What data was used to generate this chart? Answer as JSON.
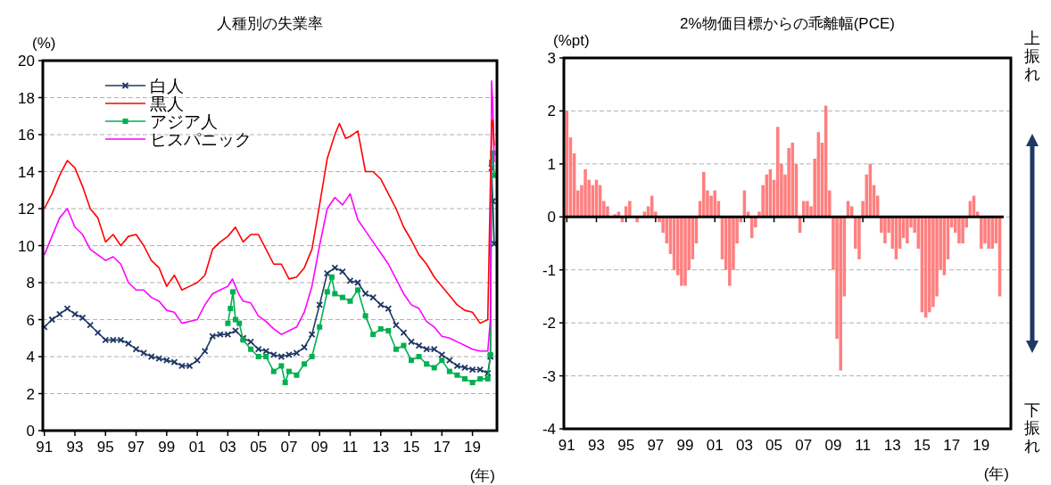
{
  "chart_data": [
    {
      "type": "line",
      "title": "人種別の失業率",
      "ylabel": "(%)",
      "xlabel": "(年)",
      "xlim": [
        1990.9,
        2020.6
      ],
      "ylim": [
        0,
        20
      ],
      "yticks": [
        0,
        2,
        4,
        6,
        8,
        10,
        12,
        14,
        16,
        18,
        20
      ],
      "xticks": [
        {
          "value": 1991,
          "label": "91"
        },
        {
          "value": 1993,
          "label": "93"
        },
        {
          "value": 1995,
          "label": "95"
        },
        {
          "value": 1997,
          "label": "97"
        },
        {
          "value": 1999,
          "label": "99"
        },
        {
          "value": 2001,
          "label": "01"
        },
        {
          "value": 2003,
          "label": "03"
        },
        {
          "value": 2005,
          "label": "05"
        },
        {
          "value": 2007,
          "label": "07"
        },
        {
          "value": 2009,
          "label": "09"
        },
        {
          "value": 2011,
          "label": "11"
        },
        {
          "value": 2013,
          "label": "13"
        },
        {
          "value": 2015,
          "label": "15"
        },
        {
          "value": 2017,
          "label": "17"
        },
        {
          "value": 2019,
          "label": "19"
        }
      ],
      "grid": "y",
      "legend": "top left",
      "line_style": "solid",
      "series": [
        {
          "name": "白人",
          "color": "#1f3864",
          "marker": "cross",
          "x": [
            1991,
            1991.5,
            1992,
            1992.5,
            1993,
            1993.5,
            1994,
            1994.5,
            1995,
            1995.5,
            1996,
            1996.5,
            1997,
            1997.5,
            1998,
            1998.5,
            1999,
            1999.5,
            2000,
            2000.5,
            2001,
            2001.5,
            2002,
            2002.5,
            2003,
            2003.5,
            2004,
            2004.5,
            2005,
            2005.5,
            2006,
            2006.5,
            2007,
            2007.5,
            2008,
            2008.5,
            2009,
            2009.5,
            2010,
            2010.5,
            2011,
            2011.5,
            2012,
            2012.5,
            2013,
            2013.5,
            2014,
            2014.5,
            2015,
            2015.5,
            2016,
            2016.5,
            2017,
            2017.5,
            2018,
            2018.5,
            2019,
            2019.5,
            2020,
            2020.17,
            2020.25,
            2020.33,
            2020.42
          ],
          "values": [
            5.6,
            6.0,
            6.3,
            6.6,
            6.3,
            6.1,
            5.7,
            5.3,
            4.9,
            4.9,
            4.9,
            4.7,
            4.4,
            4.2,
            4.0,
            3.9,
            3.8,
            3.7,
            3.5,
            3.5,
            3.8,
            4.3,
            5.1,
            5.2,
            5.2,
            5.4,
            5.0,
            4.8,
            4.4,
            4.3,
            4.1,
            4.0,
            4.1,
            4.2,
            4.5,
            5.2,
            6.8,
            8.5,
            8.8,
            8.6,
            8.1,
            8.0,
            7.4,
            7.2,
            6.8,
            6.6,
            5.7,
            5.3,
            4.8,
            4.6,
            4.4,
            4.4,
            4.1,
            3.8,
            3.5,
            3.4,
            3.3,
            3.3,
            3.1,
            4.0,
            14.2,
            12.4,
            10.1
          ]
        },
        {
          "name": "黒人",
          "color": "#ff0000",
          "marker": "none",
          "x": [
            1991,
            1991.5,
            1992,
            1992.5,
            1993,
            1993.5,
            1994,
            1994.5,
            1995,
            1995.5,
            1996,
            1996.5,
            1997,
            1997.5,
            1998,
            1998.5,
            1999,
            1999.5,
            2000,
            2000.5,
            2001,
            2001.5,
            2002,
            2002.5,
            2003,
            2003.5,
            2004,
            2004.5,
            2005,
            2005.5,
            2006,
            2006.5,
            2007,
            2007.5,
            2008,
            2008.5,
            2009,
            2009.5,
            2010,
            2010.3,
            2010.7,
            2011,
            2011.5,
            2012,
            2012.5,
            2013,
            2013.5,
            2014,
            2014.5,
            2015,
            2015.5,
            2016,
            2016.5,
            2017,
            2017.5,
            2018,
            2018.5,
            2019,
            2019.5,
            2020,
            2020.25,
            2020.33,
            2020.42
          ],
          "values": [
            12.0,
            12.8,
            13.8,
            14.6,
            14.2,
            13.2,
            12.0,
            11.5,
            10.2,
            10.6,
            10.0,
            10.5,
            10.6,
            10.0,
            9.2,
            8.8,
            7.8,
            8.4,
            7.6,
            7.8,
            8.0,
            8.4,
            9.8,
            10.2,
            10.5,
            11.0,
            10.2,
            10.6,
            10.6,
            9.8,
            9.0,
            9.0,
            8.2,
            8.3,
            8.8,
            9.8,
            12.2,
            14.7,
            16.0,
            16.6,
            15.8,
            15.9,
            16.2,
            14.0,
            14.0,
            13.6,
            12.8,
            12.0,
            11.0,
            10.3,
            9.5,
            9.0,
            8.3,
            7.8,
            7.3,
            6.8,
            6.5,
            6.4,
            5.8,
            6.0,
            16.7,
            16.8,
            15.4
          ]
        },
        {
          "name": "アジア人",
          "color": "#00b050",
          "marker": "square",
          "x": [
            2003,
            2003.17,
            2003.33,
            2003.5,
            2003.75,
            2004,
            2004.5,
            2005,
            2005.5,
            2006,
            2006.5,
            2006.75,
            2007,
            2007.5,
            2008,
            2008.5,
            2009,
            2009.5,
            2009.8,
            2010,
            2010.5,
            2011,
            2011.5,
            2012,
            2012.5,
            2013,
            2013.5,
            2014,
            2014.5,
            2015,
            2015.5,
            2016,
            2016.5,
            2017,
            2017.5,
            2018,
            2018.5,
            2019,
            2019.5,
            2020,
            2020.17,
            2020.25,
            2020.33,
            2020.42
          ],
          "values": [
            5.8,
            6.6,
            7.5,
            6.0,
            5.8,
            4.9,
            4.4,
            4.0,
            4.0,
            3.2,
            3.5,
            2.6,
            3.2,
            3.0,
            3.6,
            4.0,
            5.6,
            7.5,
            8.3,
            7.4,
            7.2,
            7.0,
            7.6,
            6.2,
            5.2,
            5.5,
            5.4,
            4.4,
            4.6,
            3.8,
            4.0,
            3.6,
            3.4,
            3.8,
            3.2,
            3.0,
            2.8,
            2.6,
            2.8,
            2.8,
            4.1,
            14.5,
            15.0,
            13.8
          ]
        },
        {
          "name": "ヒスパニック",
          "color": "#ff00ff",
          "marker": "none",
          "x": [
            1991,
            1991.5,
            1992,
            1992.5,
            1993,
            1993.5,
            1994,
            1994.5,
            1995,
            1995.5,
            1996,
            1996.5,
            1997,
            1997.5,
            1998,
            1998.5,
            1999,
            1999.5,
            2000,
            2000.5,
            2001,
            2001.5,
            2002,
            2002.5,
            2003,
            2003.3,
            2003.7,
            2004,
            2004.5,
            2005,
            2005.5,
            2006,
            2006.5,
            2007,
            2007.5,
            2008,
            2008.5,
            2009,
            2009.5,
            2010,
            2010.5,
            2011,
            2011.5,
            2012,
            2012.5,
            2013,
            2013.5,
            2014,
            2014.5,
            2015,
            2015.5,
            2016,
            2016.5,
            2017,
            2017.5,
            2018,
            2018.5,
            2019,
            2019.5,
            2020,
            2020.17,
            2020.25,
            2020.33,
            2020.42
          ],
          "values": [
            9.5,
            10.5,
            11.5,
            12.0,
            11.0,
            10.6,
            9.8,
            9.5,
            9.2,
            9.4,
            9.0,
            8.0,
            7.6,
            7.6,
            7.2,
            7.0,
            6.5,
            6.4,
            5.8,
            5.9,
            6.0,
            6.8,
            7.4,
            7.6,
            7.8,
            8.2,
            7.4,
            7.0,
            6.9,
            6.2,
            5.9,
            5.5,
            5.2,
            5.4,
            5.6,
            6.4,
            7.8,
            10.0,
            12.0,
            12.6,
            12.2,
            12.8,
            11.4,
            10.8,
            10.2,
            9.6,
            9.0,
            8.2,
            7.4,
            6.8,
            6.6,
            5.9,
            5.6,
            5.1,
            5.0,
            4.8,
            4.6,
            4.4,
            4.3,
            4.3,
            6.0,
            18.9,
            17.6,
            14.5
          ]
        }
      ]
    },
    {
      "type": "bar",
      "title": "2%物価目標からの乖離幅(PCE)",
      "ylabel": "(%pt)",
      "xlabel": "(年)",
      "xlim": [
        1990.8,
        2021
      ],
      "ylim": [
        -4,
        3
      ],
      "yticks": [
        -4,
        -3,
        -2,
        -1,
        0,
        1,
        2,
        3
      ],
      "xticks": [
        {
          "value": 1991,
          "label": "91"
        },
        {
          "value": 1993,
          "label": "93"
        },
        {
          "value": 1995,
          "label": "95"
        },
        {
          "value": 1997,
          "label": "97"
        },
        {
          "value": 1999,
          "label": "99"
        },
        {
          "value": 2001,
          "label": "01"
        },
        {
          "value": 2003,
          "label": "03"
        },
        {
          "value": 2005,
          "label": "05"
        },
        {
          "value": 2007,
          "label": "07"
        },
        {
          "value": 2009,
          "label": "09"
        },
        {
          "value": 2011,
          "label": "11"
        },
        {
          "value": 2013,
          "label": "13"
        },
        {
          "value": 2015,
          "label": "15"
        },
        {
          "value": 2017,
          "label": "17"
        },
        {
          "value": 2019,
          "label": "19"
        }
      ],
      "grid": "y",
      "color": "#ff7f7f",
      "annotations": [
        "上振れ",
        "下振れ"
      ],
      "x": [
        1991,
        1991.25,
        1991.5,
        1991.75,
        1992,
        1992.25,
        1992.5,
        1992.75,
        1993,
        1993.25,
        1993.5,
        1993.75,
        1994,
        1994.25,
        1994.5,
        1994.75,
        1995,
        1995.25,
        1995.5,
        1995.75,
        1996,
        1996.25,
        1996.5,
        1996.75,
        1997,
        1997.25,
        1997.5,
        1997.75,
        1998,
        1998.25,
        1998.5,
        1998.75,
        1999,
        1999.25,
        1999.5,
        1999.75,
        2000,
        2000.25,
        2000.5,
        2000.75,
        2001,
        2001.25,
        2001.5,
        2001.75,
        2002,
        2002.25,
        2002.5,
        2002.75,
        2003,
        2003.25,
        2003.5,
        2003.75,
        2004,
        2004.25,
        2004.5,
        2004.75,
        2005,
        2005.25,
        2005.5,
        2005.75,
        2006,
        2006.25,
        2006.5,
        2006.75,
        2007,
        2007.25,
        2007.5,
        2007.75,
        2008,
        2008.25,
        2008.5,
        2008.75,
        2009,
        2009.25,
        2009.5,
        2009.75,
        2010,
        2010.25,
        2010.5,
        2010.75,
        2011,
        2011.25,
        2011.5,
        2011.75,
        2012,
        2012.25,
        2012.5,
        2012.75,
        2013,
        2013.25,
        2013.5,
        2013.75,
        2014,
        2014.25,
        2014.5,
        2014.75,
        2015,
        2015.25,
        2015.5,
        2015.75,
        2016,
        2016.25,
        2016.5,
        2016.75,
        2017,
        2017.25,
        2017.5,
        2017.75,
        2018,
        2018.25,
        2018.5,
        2018.75,
        2019,
        2019.25,
        2019.5,
        2019.75,
        2020,
        2020.25
      ],
      "values": [
        2.0,
        1.5,
        1.2,
        0.5,
        0.6,
        0.9,
        0.7,
        0.6,
        0.7,
        0.6,
        0.3,
        0.2,
        0.0,
        0.05,
        0.1,
        -0.1,
        0.2,
        0.3,
        0.0,
        -0.1,
        0.0,
        0.1,
        0.2,
        0.4,
        0.1,
        -0.1,
        -0.3,
        -0.5,
        -0.7,
        -1.0,
        -1.1,
        -1.3,
        -1.3,
        -1.0,
        -0.8,
        -0.5,
        0.3,
        0.85,
        0.5,
        0.4,
        0.5,
        0.3,
        -0.8,
        -1.0,
        -1.3,
        -1.0,
        -0.5,
        -0.1,
        0.5,
        0.1,
        -0.4,
        -0.2,
        0.1,
        0.6,
        0.8,
        0.9,
        0.7,
        1.7,
        1.0,
        0.8,
        1.3,
        1.4,
        1.0,
        -0.3,
        0.3,
        0.3,
        0.2,
        1.1,
        1.6,
        1.4,
        2.1,
        0.5,
        -1.0,
        -2.3,
        -2.9,
        -1.5,
        0.3,
        0.2,
        -0.6,
        -0.8,
        0.3,
        0.8,
        1.0,
        0.6,
        0.4,
        -0.3,
        -0.5,
        -0.3,
        -0.6,
        -0.8,
        -0.6,
        -0.4,
        -0.5,
        -0.2,
        -0.3,
        -0.6,
        -1.8,
        -1.9,
        -1.8,
        -1.7,
        -1.5,
        -1.0,
        -1.1,
        -0.8,
        -0.2,
        -0.3,
        -0.5,
        -0.5,
        -0.2,
        0.3,
        0.4,
        0.1,
        -0.6,
        -0.5,
        -0.6,
        -0.6,
        -0.5,
        -1.5
      ]
    }
  ]
}
